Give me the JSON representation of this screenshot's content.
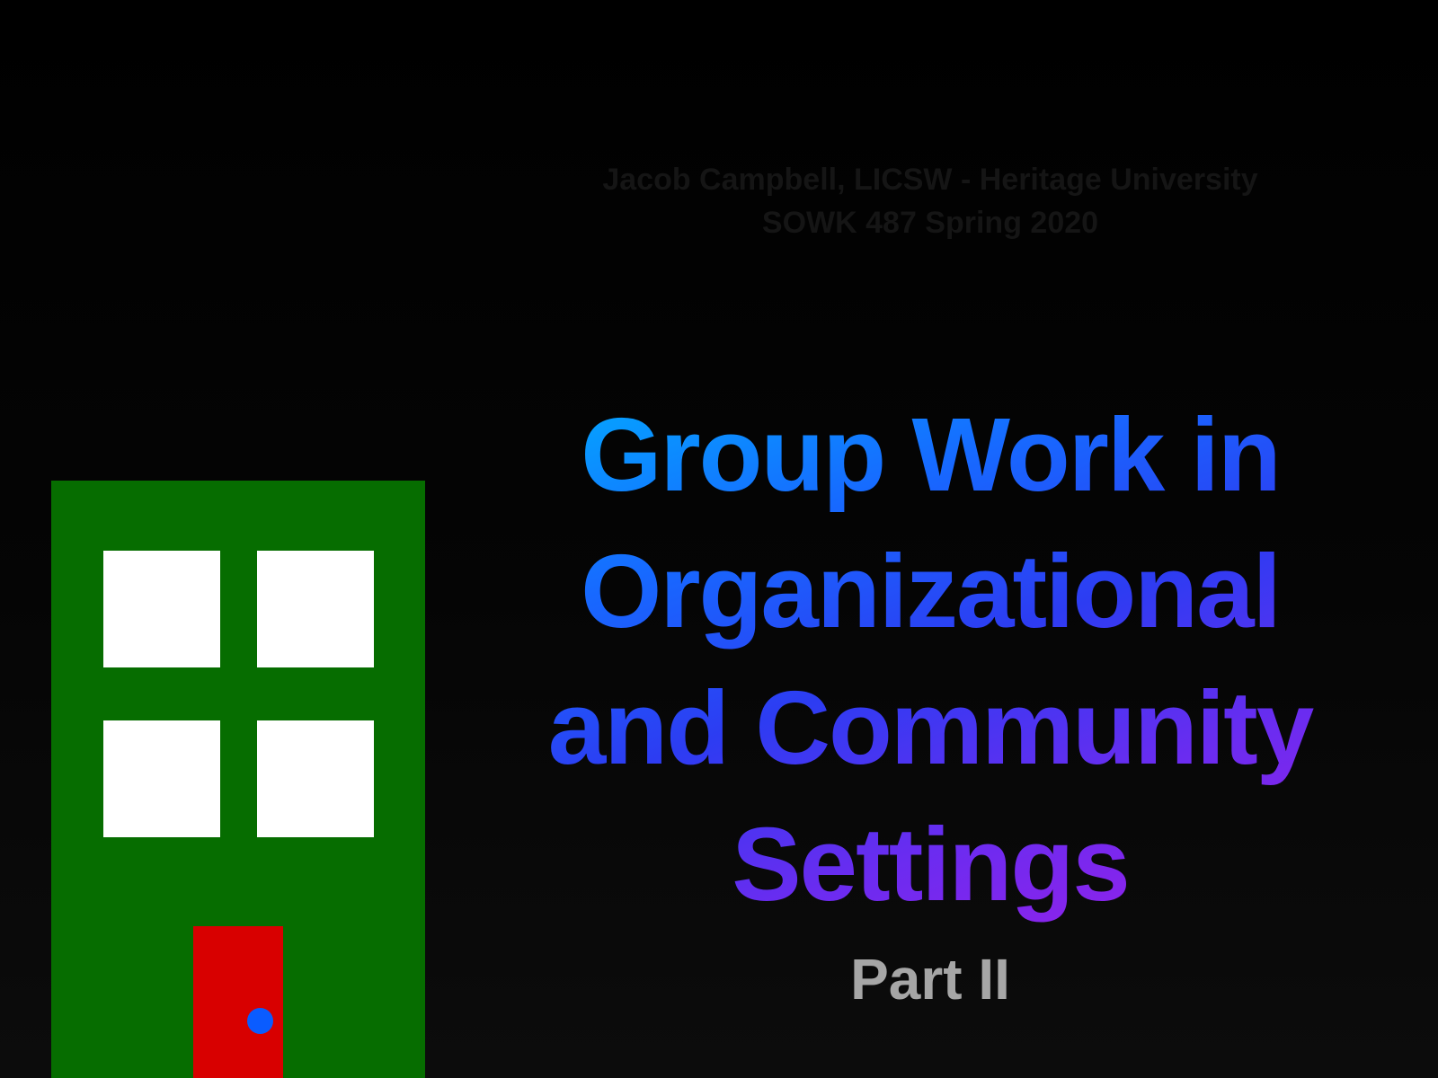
{
  "slide": {
    "author_line": "Jacob Campbell, LICSW - Heritage University",
    "course_line": "SOWK 487 Spring 2020",
    "title_lines": [
      "Group Work in",
      "Organizational",
      "and Community",
      "Settings"
    ],
    "subtitle": "Part II"
  },
  "colors": {
    "background": "#000000",
    "title_gradient_start": "#00b2ff",
    "title_gradient_mid": "#2d3cf2",
    "title_gradient_end": "#a31de8",
    "subtitle": "#a6a6a6",
    "author_text": "#151515",
    "building": "#066d00",
    "window": "#ffffff",
    "door": "#d80000",
    "doorknob": "#0a5cff"
  },
  "illustration": {
    "icon": "building-icon",
    "window_count": 4
  }
}
